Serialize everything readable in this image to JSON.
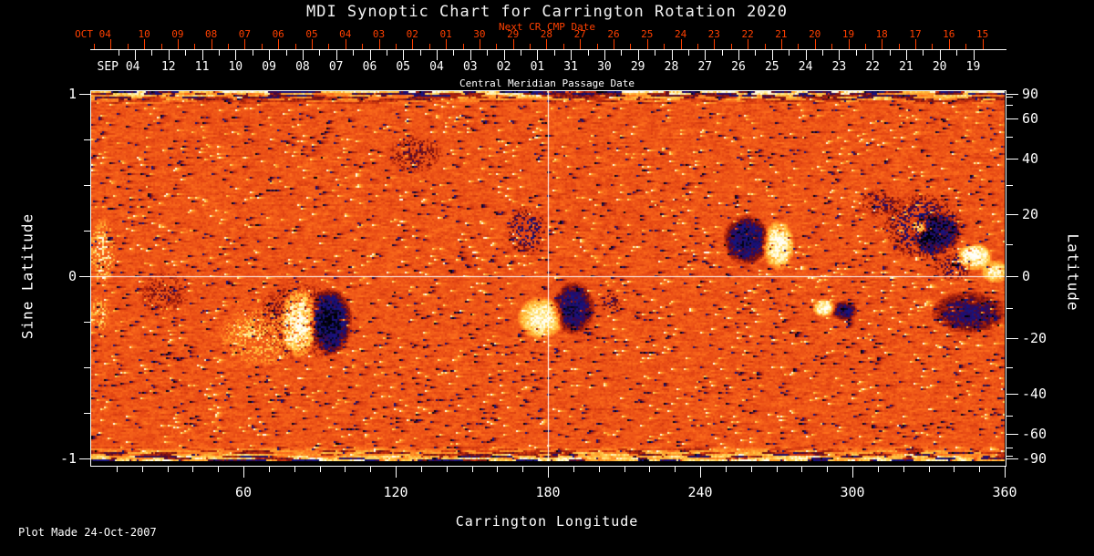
{
  "header": {
    "title": "MDI Synoptic Chart for Carrington Rotation 2020"
  },
  "top_axis": {
    "title": "Next CR CMP Date",
    "month_label": "OCT 04",
    "days": [
      "10",
      "09",
      "08",
      "07",
      "06",
      "05",
      "04",
      "03",
      "02",
      "01",
      "30",
      "29",
      "28",
      "27",
      "26",
      "25",
      "24",
      "23",
      "22",
      "21",
      "20",
      "19",
      "18",
      "17",
      "16",
      "15"
    ],
    "color": "#ff4000"
  },
  "cmp_axis": {
    "title": "Central Meridian Passage Date",
    "month_label": "SEP 04",
    "days": [
      "12",
      "11",
      "10",
      "09",
      "08",
      "07",
      "06",
      "05",
      "04",
      "03",
      "02",
      "01",
      "31",
      "30",
      "29",
      "28",
      "27",
      "26",
      "25",
      "24",
      "23",
      "22",
      "21",
      "20",
      "19"
    ],
    "color": "#ffffff"
  },
  "bottom_axis": {
    "label": "Carrington Longitude",
    "major_ticks": [
      60,
      120,
      180,
      240,
      300,
      360
    ],
    "minor_step_deg": 10,
    "range": [
      0,
      360
    ]
  },
  "left_axis": {
    "label": "Sine Latitude",
    "tick_labels": [
      "1",
      "0",
      "-1"
    ],
    "tick_values": [
      1,
      0,
      -1
    ],
    "minor_ticks": [
      0.75,
      0.5,
      0.25,
      -0.25,
      -0.5,
      -0.75
    ],
    "range": [
      -1,
      1
    ]
  },
  "right_axis": {
    "label": "Latitude",
    "tick_labels": [
      90,
      60,
      40,
      20,
      0,
      -20,
      -40,
      -60,
      -90
    ],
    "minor_step_deg": 10,
    "spacing": "sine"
  },
  "footer": {
    "plot_made": "Plot Made 24-Oct-2007"
  },
  "chart_data": {
    "type": "heatmap",
    "title": "MDI Synoptic Chart for Carrington Rotation 2020",
    "description": "Full-disk MDI magnetogram synoptic map: orange-red mixed-polarity noise background, black/blue negative-polarity and white/yellow positive-polarity active regions, noisy streaked polar bands.",
    "xlabel": "Carrington Longitude",
    "ylabel_left": "Sine Latitude",
    "ylabel_right": "Latitude",
    "x_range_deg": [
      0,
      360
    ],
    "y_range_sine": [
      -1,
      1
    ],
    "reference_lines": {
      "equator_sine": 0,
      "central_meridian_lon_deg": 180
    },
    "colors": {
      "background": "#000000",
      "axis": "#ffffff",
      "next_cr_axis": "#ff4000",
      "title_text": "#f2f2f2",
      "base_field": "#e64814"
    },
    "colormap_stops": [
      [
        -1.1,
        0,
        0,
        5
      ],
      [
        -0.9,
        8,
        8,
        40
      ],
      [
        -0.75,
        22,
        22,
        132
      ],
      [
        -0.55,
        28,
        14,
        115
      ],
      [
        -0.42,
        62,
        8,
        70
      ],
      [
        -0.3,
        115,
        15,
        18
      ],
      [
        -0.12,
        188,
        44,
        12
      ],
      [
        0,
        230,
        72,
        20
      ],
      [
        0.14,
        252,
        108,
        28
      ],
      [
        0.3,
        255,
        152,
        40
      ],
      [
        0.5,
        255,
        200,
        70
      ],
      [
        0.68,
        255,
        235,
        140
      ],
      [
        0.85,
        255,
        252,
        228
      ],
      [
        1.2,
        255,
        255,
        255
      ]
    ],
    "active_regions": [
      {
        "lon_deg": 81.6,
        "sine_lat": -0.25,
        "polarity": "positive",
        "amp": 1.35,
        "rlon_deg": 7.2,
        "rsine": 0.2
      },
      {
        "lon_deg": 94.1,
        "sine_lat": -0.245,
        "polarity": "negative",
        "amp": 1.2,
        "rlon_deg": 8.6,
        "rsine": 0.19
      },
      {
        "lon_deg": 82.6,
        "sine_lat": -0.245,
        "polarity": "negative",
        "amp": 0.5,
        "rlon_deg": 19.8,
        "rsine": 0.225
      },
      {
        "lon_deg": 66.5,
        "sine_lat": -0.325,
        "polarity": "positive",
        "amp": 0.5,
        "rlon_deg": 17.2,
        "rsine": 0.175
      },
      {
        "lon_deg": 171.4,
        "sine_lat": 0.255,
        "polarity": "negative",
        "amp": 0.75,
        "rlon_deg": 8.6,
        "rsine": 0.14
      },
      {
        "lon_deg": 176.8,
        "sine_lat": -0.225,
        "polarity": "positive",
        "amp": 1.15,
        "rlon_deg": 9.3,
        "rsine": 0.12
      },
      {
        "lon_deg": 189.8,
        "sine_lat": -0.17,
        "polarity": "negative",
        "amp": 1.05,
        "rlon_deg": 8.6,
        "rsine": 0.15
      },
      {
        "lon_deg": 257.9,
        "sine_lat": 0.205,
        "polarity": "negative",
        "amp": 1.15,
        "rlon_deg": 9.3,
        "rsine": 0.14
      },
      {
        "lon_deg": 270.5,
        "sine_lat": 0.175,
        "polarity": "positive",
        "amp": 1.25,
        "rlon_deg": 6.5,
        "rsine": 0.14
      },
      {
        "lon_deg": 288.4,
        "sine_lat": -0.17,
        "polarity": "positive",
        "amp": 1.2,
        "rlon_deg": 4.7,
        "rsine": 0.05
      },
      {
        "lon_deg": 296.4,
        "sine_lat": -0.185,
        "polarity": "negative",
        "amp": 1.0,
        "rlon_deg": 5.4,
        "rsine": 0.055
      },
      {
        "lon_deg": 327.6,
        "sine_lat": 0.275,
        "polarity": "negative",
        "amp": 0.78,
        "rlon_deg": 16.5,
        "rsine": 0.19
      },
      {
        "lon_deg": 332.3,
        "sine_lat": 0.24,
        "polarity": "negative",
        "amp": 0.95,
        "rlon_deg": 10.0,
        "rsine": 0.125
      },
      {
        "lon_deg": 326.2,
        "sine_lat": 0.27,
        "polarity": "positive",
        "amp": 1.3,
        "rlon_deg": 3.2,
        "rsine": 0.04
      },
      {
        "lon_deg": 347.7,
        "sine_lat": 0.11,
        "polarity": "positive",
        "amp": 1.45,
        "rlon_deg": 7.2,
        "rsine": 0.075
      },
      {
        "lon_deg": 356.0,
        "sine_lat": 0.03,
        "polarity": "positive",
        "amp": 1.0,
        "rlon_deg": 5.7,
        "rsine": 0.065
      },
      {
        "lon_deg": 339.5,
        "sine_lat": 0.055,
        "polarity": "negative",
        "amp": 0.55,
        "rlon_deg": 8.6,
        "rsine": 0.08
      },
      {
        "lon_deg": 345.6,
        "sine_lat": -0.195,
        "polarity": "negative",
        "amp": 0.85,
        "rlon_deg": 15.1,
        "rsine": 0.12
      },
      {
        "lon_deg": 310.8,
        "sine_lat": 0.405,
        "polarity": "negative",
        "amp": 0.5,
        "rlon_deg": 9.3,
        "rsine": 0.08
      },
      {
        "lon_deg": 4.3,
        "sine_lat": 0.14,
        "polarity": "positive",
        "amp": 0.75,
        "rlon_deg": 5.4,
        "rsine": 0.19
      },
      {
        "lon_deg": 2.9,
        "sine_lat": -0.21,
        "polarity": "positive",
        "amp": 0.55,
        "rlon_deg": 4.3,
        "rsine": 0.11
      },
      {
        "lon_deg": 127.6,
        "sine_lat": 0.675,
        "polarity": "negative",
        "amp": 0.45,
        "rlon_deg": 11.5,
        "rsine": 0.11
      },
      {
        "lon_deg": 204.1,
        "sine_lat": -0.135,
        "polarity": "negative",
        "amp": 0.6,
        "rlon_deg": 5.0,
        "rsine": 0.055
      },
      {
        "lon_deg": 28.7,
        "sine_lat": -0.085,
        "polarity": "negative",
        "amp": 0.35,
        "rlon_deg": 10.8,
        "rsine": 0.125
      }
    ],
    "polar_bands": {
      "north": "horizontal streaks of dark blue/black and bright pixels, sine_lat > 0.93",
      "south": "horizontal streaks dominated by yellow/white with dark blue bits, sine_lat < -0.92"
    },
    "legend_position": "none",
    "grid": "equator line and 180-degree meridian line in white"
  }
}
